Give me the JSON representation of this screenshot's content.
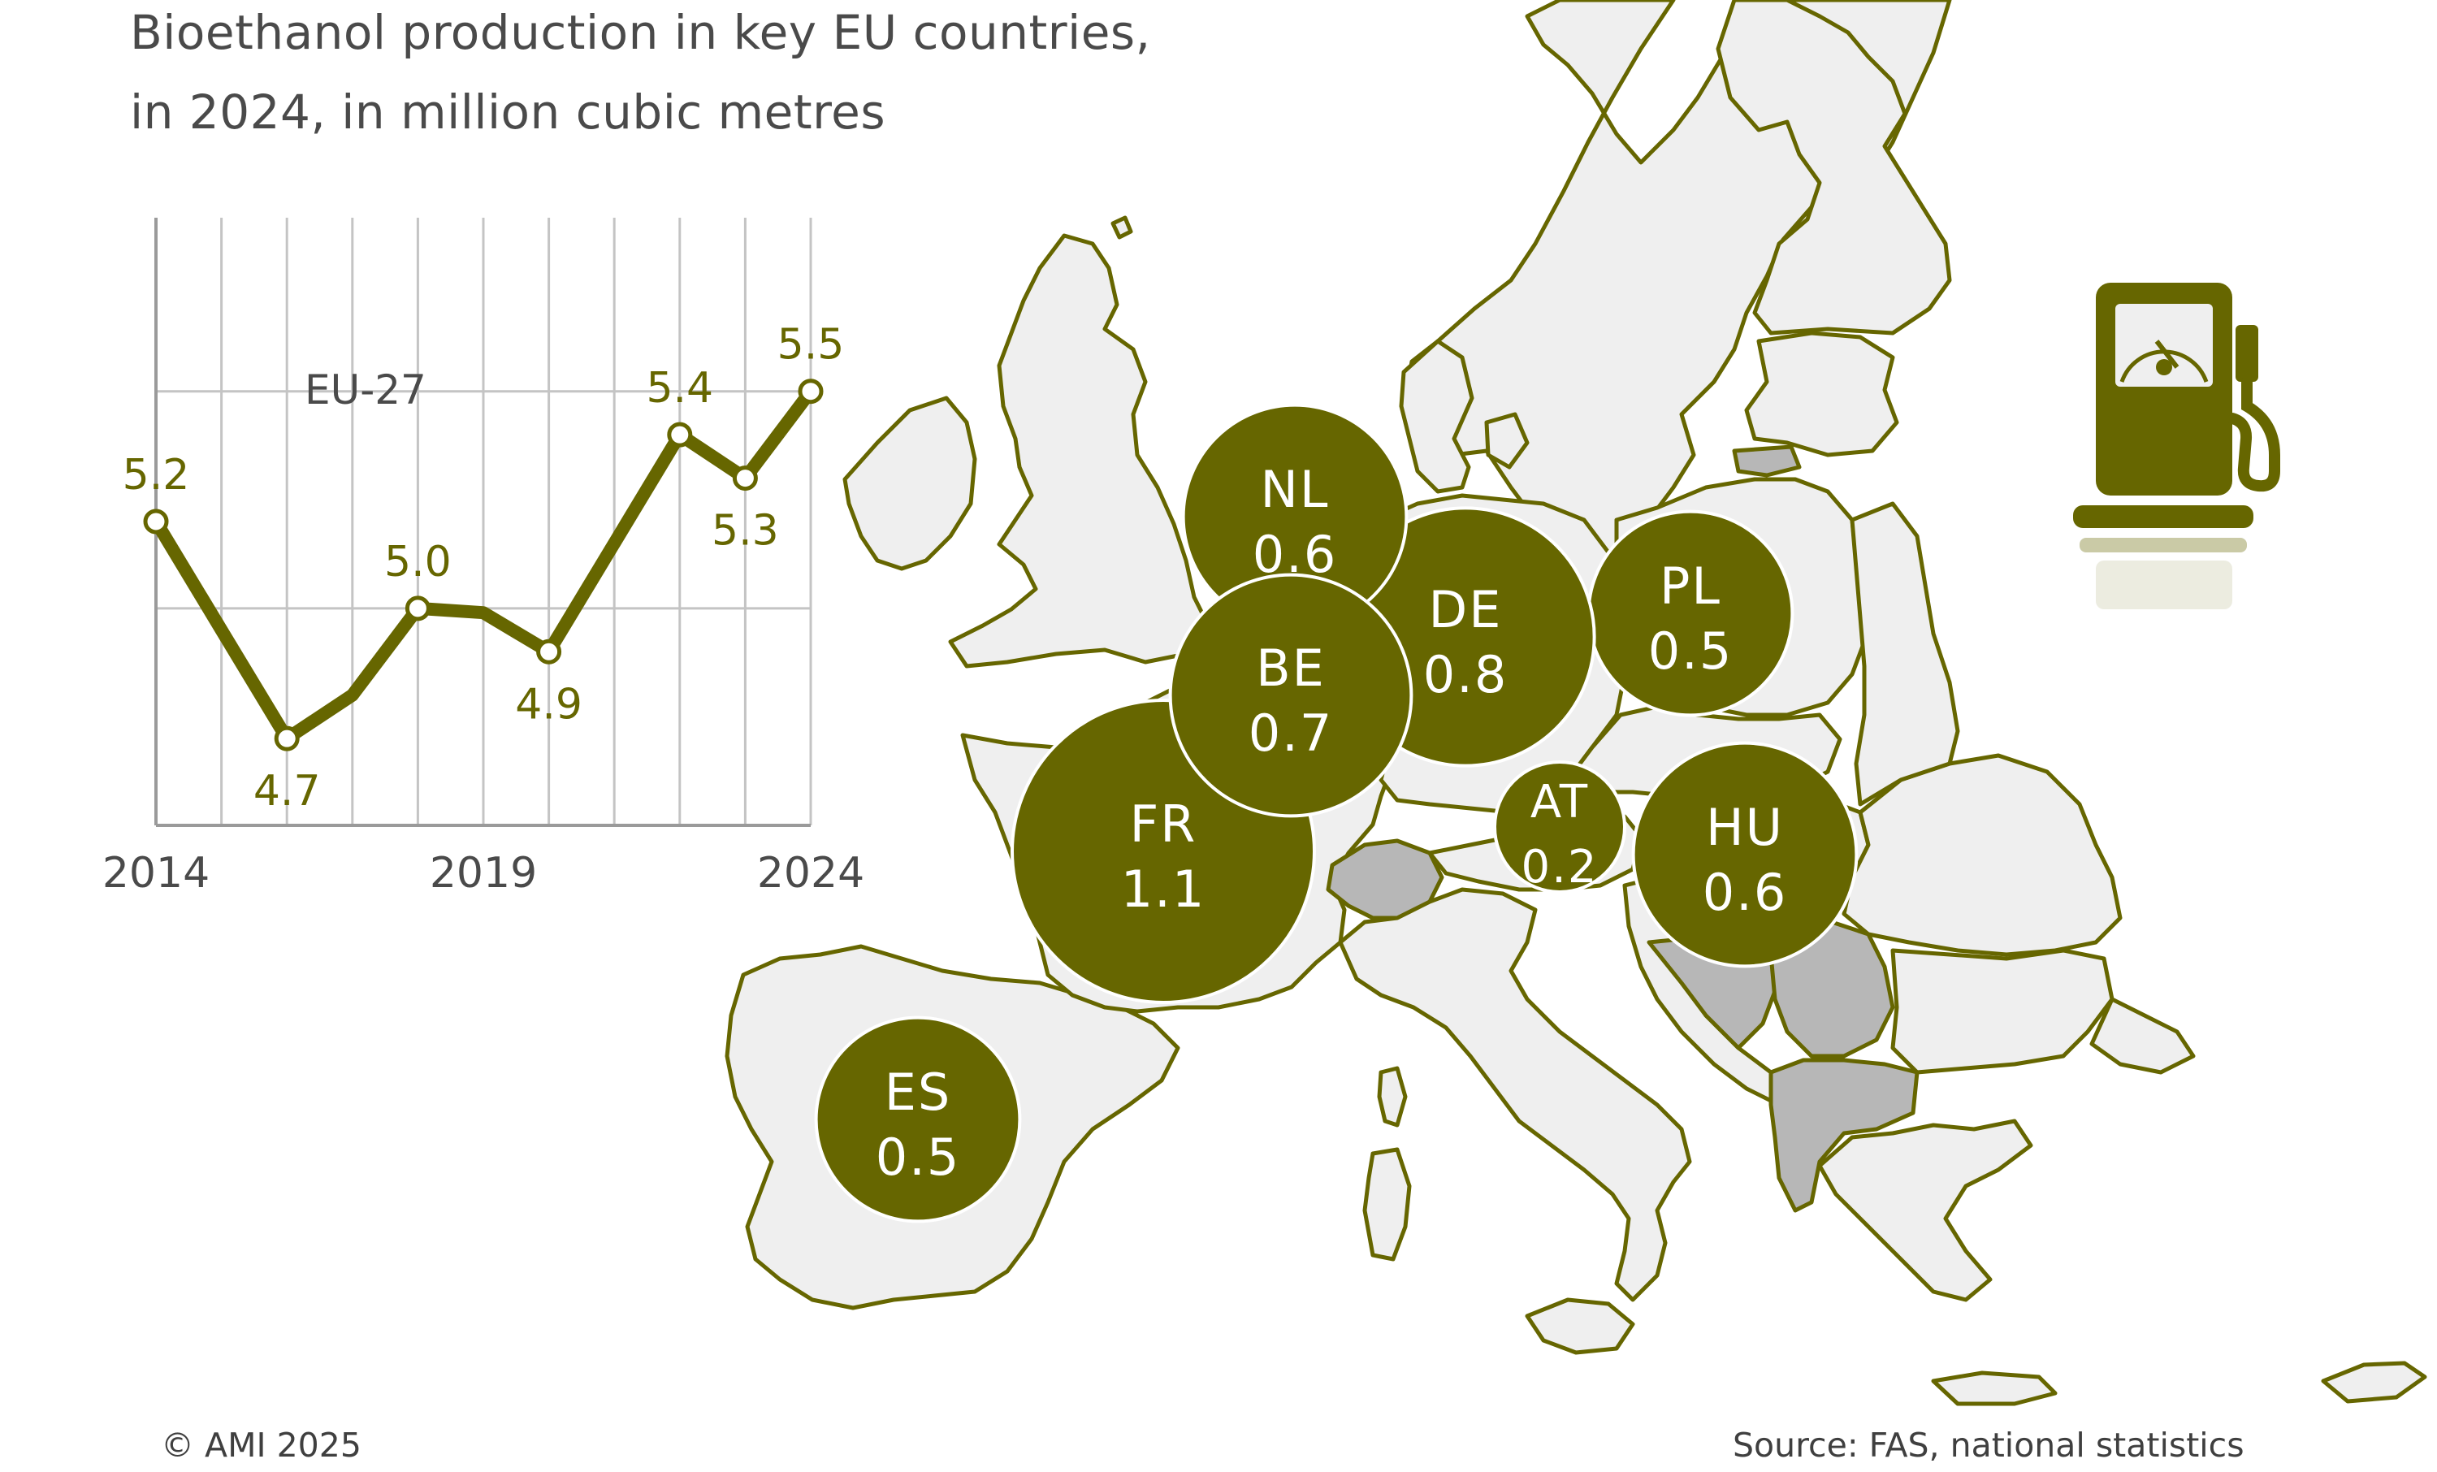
{
  "title_lines": [
    "Bioethanol production in key EU countries,",
    "in 2024, in million cubic metres"
  ],
  "footer": {
    "copyright": "© AMI 2025",
    "source": "Source: FAS, national statistics"
  },
  "colors": {
    "accent": "#666600",
    "land": "#efefef",
    "land_nonEU": "#b7b7b7",
    "grid": "#c4c4c4",
    "text": "#4a4a4a"
  },
  "icons": [
    "fuel-pump-icon"
  ],
  "chart_data": [
    {
      "type": "line",
      "title": "",
      "series_label": "EU-27",
      "x": [
        2014,
        2015,
        2016,
        2017,
        2018,
        2019,
        2020,
        2021,
        2022,
        2023,
        2024
      ],
      "series": [
        {
          "name": "EU-27",
          "values": [
            5.2,
            4.95,
            4.7,
            4.8,
            5.0,
            4.99,
            4.9,
            5.15,
            5.4,
            5.3,
            5.5
          ]
        }
      ],
      "point_labels": [
        {
          "x": 2014,
          "text": "5.2"
        },
        {
          "x": 2016,
          "text": "4.7"
        },
        {
          "x": 2018,
          "text": "5.0"
        },
        {
          "x": 2020,
          "text": "4.9"
        },
        {
          "x": 2022,
          "text": "5.4"
        },
        {
          "x": 2023,
          "text": "5.3"
        },
        {
          "x": 2024,
          "text": "5.5"
        }
      ],
      "xticks": [
        "2014",
        "2019",
        "2024"
      ],
      "ylim": [
        4.5,
        5.9
      ],
      "grid": true
    },
    {
      "type": "bubble-map",
      "unit": "million cubic metres",
      "year": 2024,
      "countries": [
        {
          "code": "FR",
          "value": 1.1
        },
        {
          "code": "DE",
          "value": 0.8
        },
        {
          "code": "BE",
          "value": 0.7
        },
        {
          "code": "NL",
          "value": 0.6
        },
        {
          "code": "HU",
          "value": 0.6
        },
        {
          "code": "PL",
          "value": 0.5
        },
        {
          "code": "ES",
          "value": 0.5
        },
        {
          "code": "AT",
          "value": 0.2
        }
      ]
    }
  ]
}
